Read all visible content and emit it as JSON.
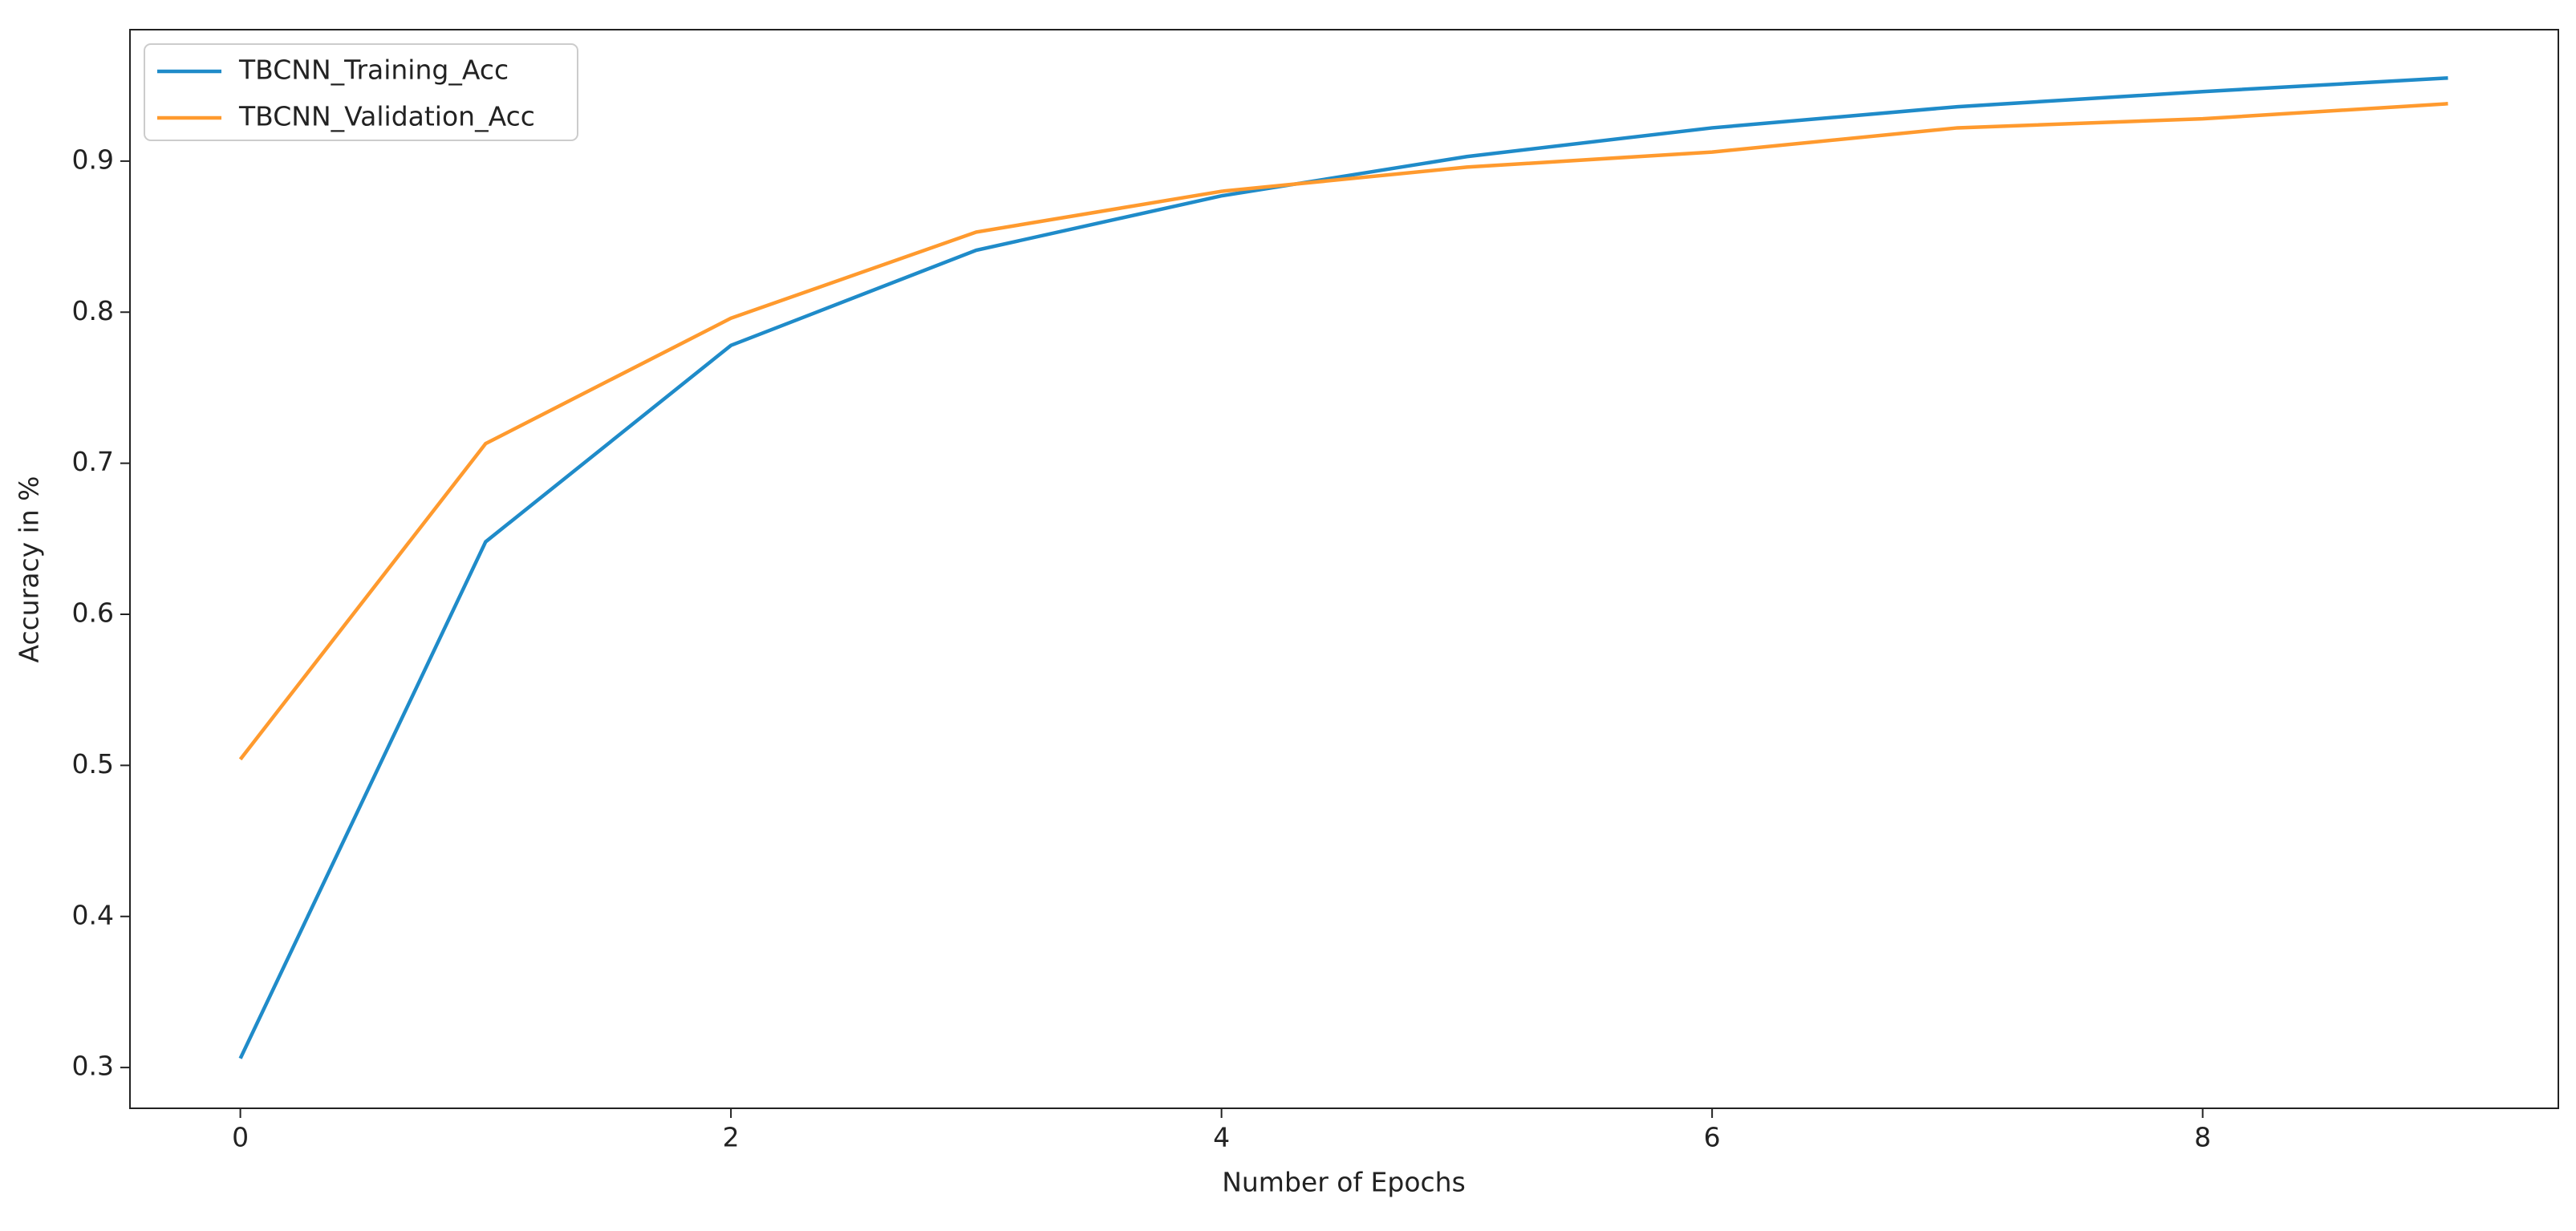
{
  "chart_data": {
    "type": "line",
    "x": [
      0,
      1,
      2,
      3,
      4,
      5,
      6,
      7,
      8,
      9
    ],
    "series": [
      {
        "name": "TBCNN_Training_Acc",
        "color": "#1f8bc9",
        "values": [
          0.306,
          0.648,
          0.778,
          0.841,
          0.877,
          0.903,
          0.922,
          0.936,
          0.946,
          0.955
        ]
      },
      {
        "name": "TBCNN_Validation_Acc",
        "color": "#ff9a2e",
        "values": [
          0.504,
          0.713,
          0.796,
          0.853,
          0.88,
          0.896,
          0.906,
          0.922,
          0.928,
          0.938
        ]
      }
    ],
    "xlabel": "Number of Epochs",
    "ylabel": "Accuracy in %",
    "xlim": [
      -0.45,
      9.45
    ],
    "ylim": [
      0.273,
      0.987
    ],
    "xticks": [
      0,
      2,
      4,
      6,
      8
    ],
    "yticks": [
      0.3,
      0.4,
      0.5,
      0.6,
      0.7,
      0.8,
      0.9
    ],
    "legend": "upper left"
  }
}
